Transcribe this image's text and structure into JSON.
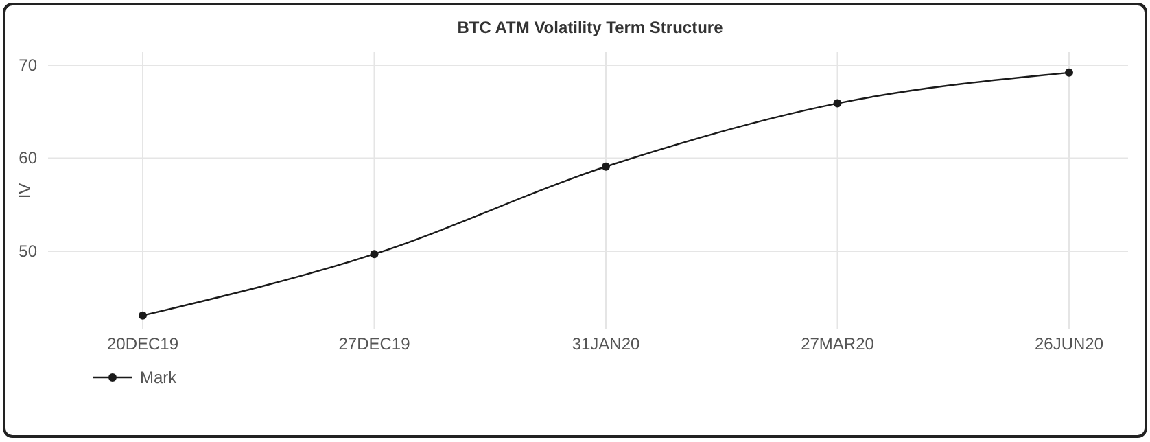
{
  "chart_data": {
    "type": "line",
    "title": "BTC ATM Volatility Term Structure",
    "ylabel": "IV",
    "categories": [
      "20DEC19",
      "27DEC19",
      "31JAN20",
      "27MAR20",
      "26JUN20"
    ],
    "series": [
      {
        "name": "Mark",
        "color": "#1a1a1a",
        "values": [
          43.1,
          49.7,
          59.1,
          65.9,
          69.2
        ]
      }
    ],
    "ylim": [
      41.6,
      71.4
    ],
    "yticks": [
      50,
      60,
      70
    ],
    "grid": true,
    "legend": "bottom left",
    "marker": "circle",
    "line_style": "solid"
  }
}
